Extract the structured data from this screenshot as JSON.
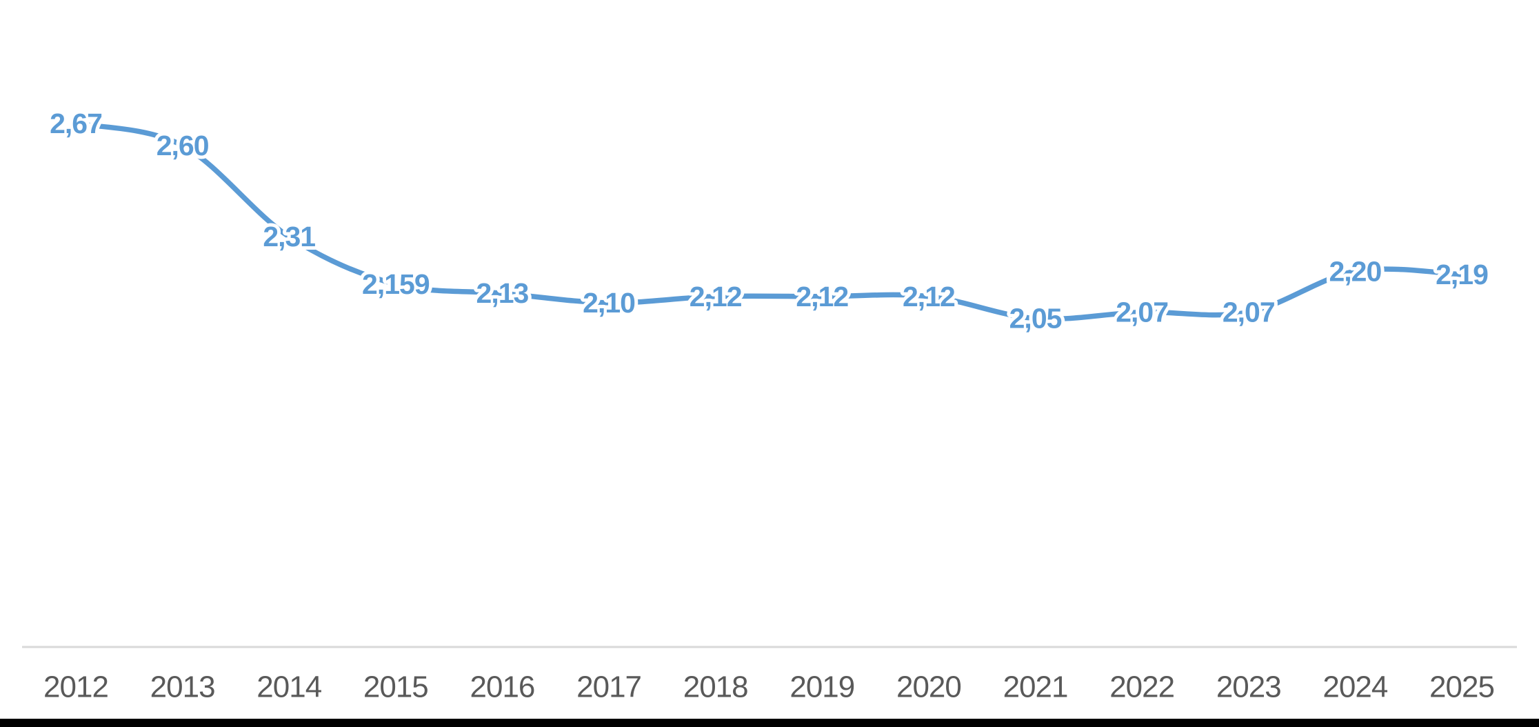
{
  "chart_data": {
    "type": "line",
    "title": "",
    "categories": [
      "2012",
      "2013",
      "2014",
      "2015",
      "2016",
      "2017",
      "2018",
      "2019",
      "2020",
      "2021",
      "2022",
      "2023",
      "2024",
      "2025"
    ],
    "series": [
      {
        "name": "",
        "values": [
          2.67,
          2.6,
          2.31,
          2.159,
          2.13,
          2.1,
          2.12,
          2.12,
          2.12,
          2.05,
          2.07,
          2.07,
          2.2,
          2.19
        ],
        "data_labels": [
          "2,67",
          "2,60",
          "2,31",
          "2,159",
          "2,13",
          "2,10",
          "2,12",
          "2,12",
          "2,12",
          "2,05",
          "2,07",
          "2,07",
          "2,20",
          "2,19"
        ]
      }
    ],
    "xlabel": "",
    "ylabel": "",
    "ylim": [
      2.05,
      2.67
    ],
    "grid": false,
    "legend": false,
    "y_axis_visible": false,
    "smooth_line": true,
    "decimal_separator": ",",
    "colors": {
      "line": "#5B9BD5",
      "data_label": "#5B9BD5",
      "axis_tick_label": "#595959",
      "axis_line": "#D9D9D9",
      "background": "#FFFFFF",
      "bottom_bar": "#000000"
    }
  }
}
